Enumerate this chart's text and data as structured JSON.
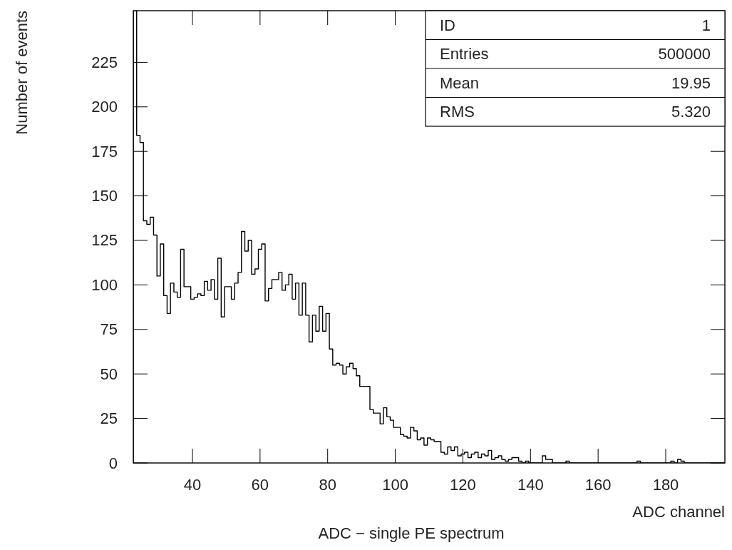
{
  "chart_data": {
    "type": "histogram",
    "title": "ADC − single PE spectrum",
    "xlabel": "ADC channel",
    "ylabel": "Number of events",
    "annotations": [
      "ID",
      "1",
      "Entries",
      "500000",
      "Mean",
      "19.95",
      "RMS",
      "5.320"
    ],
    "color": "#000000",
    "bins": [
      22.5,
      23.5,
      24.5,
      25.5,
      26.5,
      27.5,
      28.5,
      29.5,
      30.5,
      31.5,
      32.5,
      33.5,
      34.5,
      35.5,
      36.5,
      37.5,
      38.5,
      39.5,
      40.5,
      41.5,
      42.5,
      43.5,
      44.5,
      45.5,
      46.5,
      47.5,
      48.5,
      49.5,
      50.5,
      51.5,
      52.5,
      53.5,
      54.5,
      55.5,
      56.5,
      57.5,
      58.5,
      59.5,
      60.5,
      61.5,
      62.5,
      63.5,
      64.5,
      65.5,
      66.5,
      67.5,
      68.5,
      69.5,
      70.5,
      71.5,
      72.5,
      73.5,
      74.5,
      75.5,
      76.5,
      77.5,
      78.5,
      79.5,
      80.5,
      81.5,
      82.5,
      83.5,
      84.5,
      85.5,
      86.5,
      87.5,
      88.5,
      89.5,
      90.5,
      91.5,
      92.5,
      93.5,
      94.5,
      95.5,
      96.5,
      97.5,
      98.5,
      99.5,
      100.5,
      101.5,
      102.5,
      103.5,
      104.5,
      105.5,
      106.5,
      107.5,
      108.5,
      109.5,
      110.5,
      111.5,
      112.5,
      113.5,
      114.5,
      115.5,
      116.5,
      117.5,
      118.5,
      119.5,
      120.5,
      121.5,
      122.5,
      123.5,
      124.5,
      125.5,
      126.5,
      127.5,
      128.5,
      129.5,
      130.5,
      131.5,
      132.5,
      133.5,
      134.5,
      135.5,
      136.5,
      137.5,
      138.5,
      139.5,
      140.5,
      141.5,
      142.5,
      143.5,
      144.5,
      145.5,
      146.5,
      147.5,
      148.5,
      149.5,
      150.5,
      151.5,
      152.5,
      153.5,
      154.5,
      155.5,
      156.5,
      157.5,
      158.5,
      159.5,
      160.5,
      161.5,
      162.5,
      163.5,
      164.5,
      165.5,
      166.5,
      167.5,
      168.5,
      169.5,
      170.5,
      171.5,
      172.5,
      173.5,
      174.5,
      175.5,
      176.5,
      177.5,
      178.5,
      179.5,
      180.5,
      181.5,
      182.5,
      183.5,
      184.5,
      185.5,
      186.5,
      187.5,
      188.5,
      189.5,
      190.5,
      191.5,
      192.5,
      193.5,
      194.5,
      195.5,
      196.5,
      197.5
    ],
    "values": [
      254,
      184,
      180,
      136,
      134,
      138,
      128,
      105,
      123,
      94,
      84,
      101,
      96,
      93,
      120,
      99,
      99,
      92,
      93,
      95,
      94,
      102,
      97,
      103,
      92,
      115,
      82,
      99,
      99,
      92,
      101,
      107,
      130,
      119,
      125,
      106,
      109,
      120,
      123,
      91,
      98,
      103,
      103,
      107,
      97,
      100,
      106,
      92,
      101,
      83,
      101,
      83,
      68,
      83,
      74,
      88,
      74,
      84,
      64,
      55,
      56,
      55,
      50,
      54,
      56,
      53,
      49,
      43,
      43,
      43,
      30,
      28,
      28,
      22,
      31,
      26,
      24,
      20,
      20,
      16,
      15,
      14,
      20,
      18,
      13,
      14,
      10,
      14,
      13,
      12,
      12,
      6,
      5,
      9,
      7,
      9,
      4,
      5,
      6,
      3,
      5,
      6,
      3,
      5,
      4,
      7,
      2,
      3,
      4,
      2,
      1,
      2,
      3,
      3,
      1,
      0,
      1,
      0,
      0,
      0,
      0,
      4,
      2,
      2,
      0,
      0,
      0,
      0,
      1,
      0,
      0,
      0,
      0,
      0,
      0,
      0,
      0,
      0,
      0,
      0,
      0,
      0,
      0,
      0,
      0,
      0,
      0,
      0,
      0,
      1,
      0,
      0,
      0,
      0,
      0,
      0,
      0,
      0,
      0,
      1,
      0,
      2,
      1,
      0,
      0,
      0,
      0,
      0,
      0,
      0,
      0,
      0,
      0,
      0,
      0
    ],
    "xlim": [
      22.5,
      197.5
    ],
    "ylim": [
      0,
      254
    ],
    "xticks": [
      40,
      60,
      80,
      100,
      120,
      140,
      160,
      180
    ],
    "yticks": [
      0,
      25,
      50,
      75,
      100,
      125,
      150,
      175,
      200,
      225
    ]
  }
}
